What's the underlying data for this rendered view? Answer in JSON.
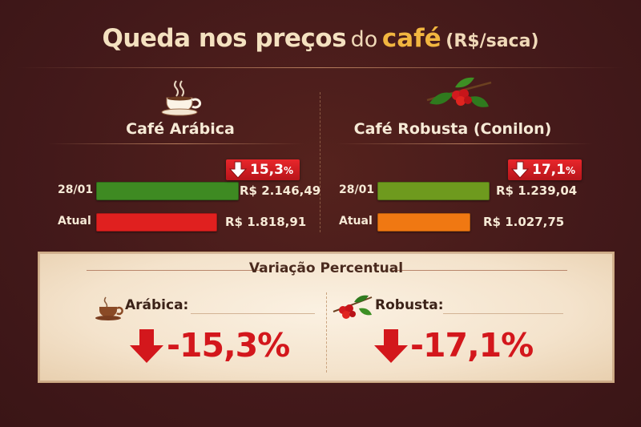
{
  "title": {
    "part1": "Queda nos preços",
    "part2": "do",
    "part3": "café",
    "part4": "(R$/saca)"
  },
  "chart_data": {
    "type": "bar",
    "groups": [
      {
        "name": "Café Arábica",
        "icon": "coffee-cup-icon",
        "categories": [
          "28/01",
          "Atual"
        ],
        "values": [
          2146.49,
          1818.91
        ],
        "value_labels": [
          "R$ 2.146,49",
          "R$ 1.818,91"
        ],
        "colors": [
          "#3e8a22",
          "#e0201f"
        ],
        "change_label": "15,3",
        "change_unit": "%"
      },
      {
        "name": "Café Robusta (Conilon)",
        "icon": "coffee-branch-icon",
        "categories": [
          "28/01",
          "Atual"
        ],
        "values": [
          1239.04,
          1027.75
        ],
        "value_labels": [
          "R$ 1.239,04",
          "R$ 1.027,75"
        ],
        "colors": [
          "#6e9a1e",
          "#f07812"
        ],
        "change_label": "17,1",
        "change_unit": "%"
      }
    ]
  },
  "panel": {
    "title": "Variação Percentual",
    "items": [
      {
        "label": "Arábica:",
        "value": "-15,3%",
        "icon": "coffee-cup-icon"
      },
      {
        "label": "Robusta:",
        "value": "-17,1%",
        "icon": "coffee-branch-icon"
      }
    ]
  },
  "colors": {
    "background": "#4a1e1a",
    "accent": "#f2b640",
    "down": "#d3171c"
  }
}
